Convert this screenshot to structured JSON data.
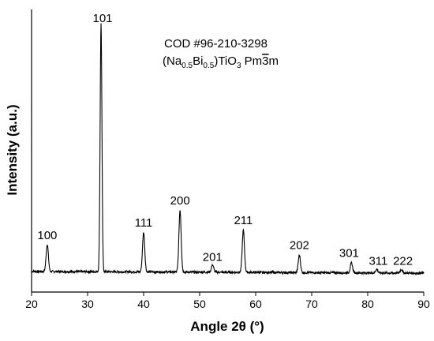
{
  "chart_data": {
    "type": "line",
    "xlabel": "Angle 2θ (°)",
    "ylabel": "Intensity (a.u.)",
    "xlim": [
      20,
      90
    ],
    "x_ticks": [
      "20",
      "30",
      "40",
      "50",
      "60",
      "70",
      "80",
      "90"
    ],
    "y_ticks_shown": false,
    "grid": false,
    "reference": {
      "line1": "COD #96-210-3298",
      "formula_prefix": "(Na",
      "na_subscript": "0.5",
      "bi_text": "Bi",
      "bi_subscript": "0.5",
      "formula_mid": ")TiO",
      "o_subscript": "3",
      "space_group_pre": " Pm",
      "space_group_bar": "3",
      "space_group_post": "m"
    },
    "baseline": 2,
    "peaks": [
      {
        "label": "100",
        "x": 22.8,
        "y": 11
      },
      {
        "label": "101",
        "x": 32.4,
        "y": 100
      },
      {
        "label": "111",
        "x": 40.0,
        "y": 16
      },
      {
        "label": "200",
        "x": 46.5,
        "y": 25
      },
      {
        "label": "201",
        "x": 52.3,
        "y": 3
      },
      {
        "label": "211",
        "x": 57.8,
        "y": 17
      },
      {
        "label": "202",
        "x": 67.8,
        "y": 7
      },
      {
        "label": "301",
        "x": 77.1,
        "y": 4
      },
      {
        "label": "311",
        "x": 81.6,
        "y": 1.5
      },
      {
        "label": "222",
        "x": 86.0,
        "y": 1.5
      }
    ]
  }
}
